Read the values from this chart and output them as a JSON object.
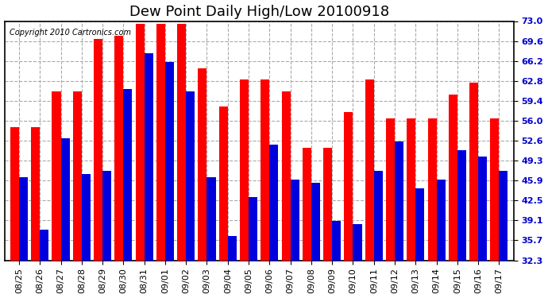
{
  "title": "Dew Point Daily High/Low 20100918",
  "copyright": "Copyright 2010 Cartronics.com",
  "categories": [
    "08/25",
    "08/26",
    "08/27",
    "08/28",
    "08/29",
    "08/30",
    "08/31",
    "09/01",
    "09/02",
    "09/03",
    "09/04",
    "09/05",
    "09/06",
    "09/07",
    "09/08",
    "09/09",
    "09/10",
    "09/11",
    "09/12",
    "09/13",
    "09/14",
    "09/15",
    "09/16",
    "09/17"
  ],
  "high_values": [
    55.0,
    55.0,
    61.0,
    61.0,
    70.0,
    70.5,
    72.5,
    72.5,
    72.5,
    65.0,
    58.5,
    63.0,
    63.0,
    61.0,
    51.5,
    51.5,
    57.5,
    63.0,
    56.5,
    56.5,
    56.5,
    60.5,
    62.5,
    56.5
  ],
  "low_values": [
    46.5,
    37.5,
    53.0,
    47.0,
    47.5,
    61.5,
    67.5,
    66.0,
    61.0,
    46.5,
    36.5,
    43.0,
    52.0,
    46.0,
    45.5,
    39.0,
    38.5,
    47.5,
    52.5,
    44.5,
    46.0,
    51.0,
    50.0,
    47.5
  ],
  "bar_width": 0.42,
  "high_color": "#ff0000",
  "low_color": "#0000dd",
  "background_color": "#ffffff",
  "plot_bg_color": "#ffffff",
  "grid_color": "#aaaaaa",
  "ylim_min": 32.3,
  "ylim_max": 73.0,
  "yticks": [
    32.3,
    35.7,
    39.1,
    42.5,
    45.9,
    49.3,
    52.6,
    56.0,
    59.4,
    62.8,
    66.2,
    69.6,
    73.0
  ],
  "title_fontsize": 13,
  "tick_fontsize": 8,
  "copyright_fontsize": 7
}
